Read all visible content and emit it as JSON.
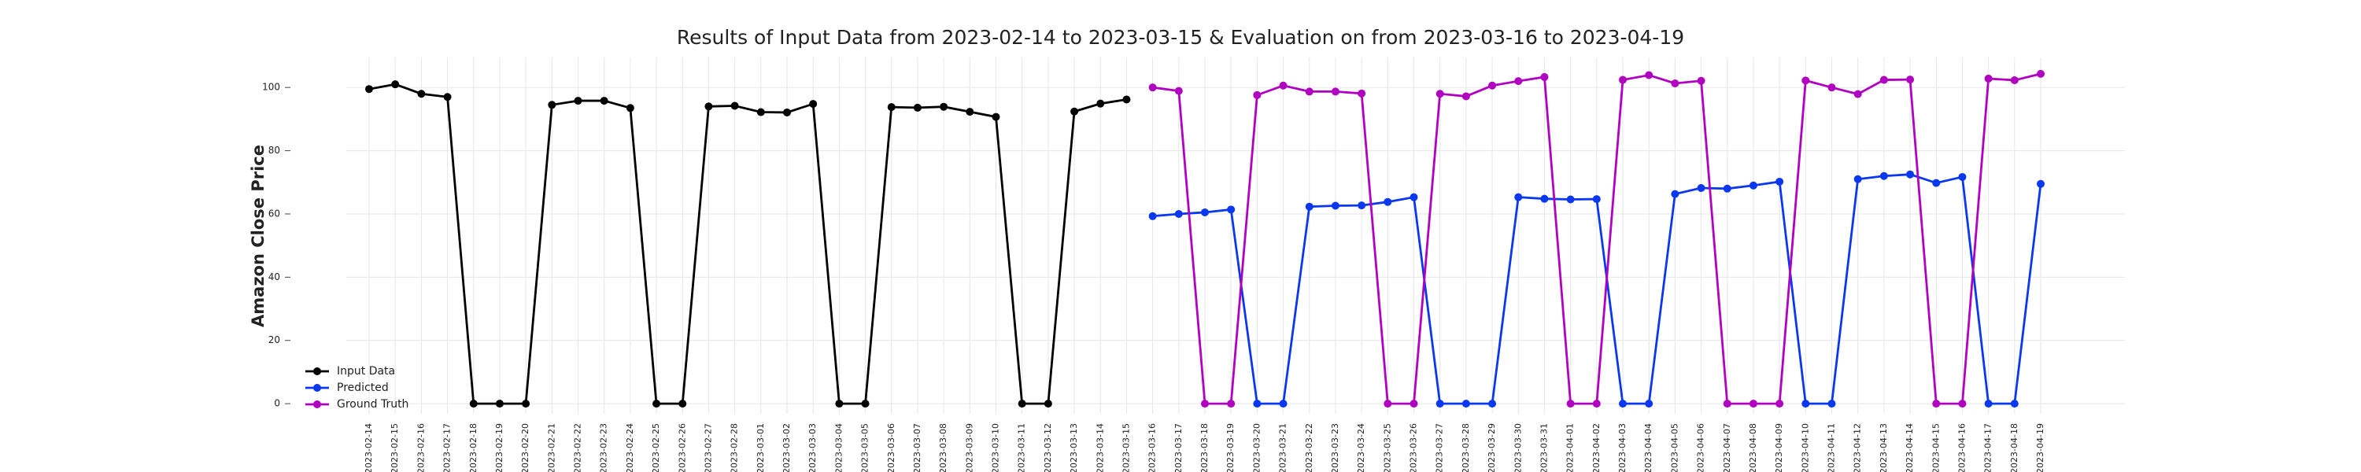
{
  "chart_data": {
    "type": "line",
    "title": "Results of Input Data from 2023-02-14 to 2023-03-15 & Evaluation on from 2023-03-16 to 2023-04-19",
    "y_label": "Amazon Close Price",
    "categories": [
      "2023-02-14",
      "2023-02-15",
      "2023-02-16",
      "2023-02-17",
      "2023-02-18",
      "2023-02-19",
      "2023-02-20",
      "2023-02-21",
      "2023-02-22",
      "2023-02-23",
      "2023-02-24",
      "2023-02-25",
      "2023-02-26",
      "2023-02-27",
      "2023-02-28",
      "2023-03-01",
      "2023-03-02",
      "2023-03-03",
      "2023-03-04",
      "2023-03-05",
      "2023-03-06",
      "2023-03-07",
      "2023-03-08",
      "2023-03-09",
      "2023-03-10",
      "2023-03-11",
      "2023-03-12",
      "2023-03-13",
      "2023-03-14",
      "2023-03-15",
      "2023-03-16",
      "2023-03-17",
      "2023-03-18",
      "2023-03-19",
      "2023-03-20",
      "2023-03-21",
      "2023-03-22",
      "2023-03-23",
      "2023-03-24",
      "2023-03-25",
      "2023-03-26",
      "2023-03-27",
      "2023-03-28",
      "2023-03-29",
      "2023-03-30",
      "2023-03-31",
      "2023-04-01",
      "2023-04-02",
      "2023-04-03",
      "2023-04-04",
      "2023-04-05",
      "2023-04-06",
      "2023-04-07",
      "2023-04-08",
      "2023-04-09",
      "2023-04-10",
      "2023-04-11",
      "2023-04-12",
      "2023-04-13",
      "2023-04-14",
      "2023-04-15",
      "2023-04-16",
      "2023-04-17",
      "2023-04-18",
      "2023-04-19"
    ],
    "series": [
      {
        "name": "Input Data",
        "color": "#000000",
        "values": [
          99.5,
          101,
          98,
          97,
          0,
          0,
          0,
          94.5,
          95.8,
          95.8,
          93.5,
          0,
          0,
          94,
          94.2,
          92.2,
          92.1,
          94.8,
          0,
          0,
          93.8,
          93.6,
          93.9,
          92.3,
          90.7,
          0,
          0,
          92.4,
          94.9,
          96.2,
          null,
          null,
          null,
          null,
          null,
          null,
          null,
          null,
          null,
          null,
          null,
          null,
          null,
          null,
          null,
          null,
          null,
          null,
          null,
          null,
          null,
          null,
          null,
          null,
          null,
          null,
          null,
          null,
          null,
          null,
          null,
          null,
          null,
          null,
          null
        ]
      },
      {
        "name": "Predicted",
        "color": "#0a37f0",
        "values": [
          null,
          null,
          null,
          null,
          null,
          null,
          null,
          null,
          null,
          null,
          null,
          null,
          null,
          null,
          null,
          null,
          null,
          null,
          null,
          null,
          null,
          null,
          null,
          null,
          null,
          null,
          null,
          null,
          null,
          null,
          59.3,
          60,
          60.5,
          61.4,
          0,
          0,
          62.3,
          62.6,
          62.7,
          63.8,
          65.3,
          0,
          0,
          0,
          65.3,
          64.8,
          64.6,
          64.7,
          0,
          0,
          66.3,
          68.2,
          68,
          69,
          70.2,
          0,
          0,
          71,
          72,
          72.5,
          69.8,
          71.7,
          0,
          0,
          69.5
        ]
      },
      {
        "name": "Ground Truth",
        "color": "#b000c0",
        "values": [
          null,
          null,
          null,
          null,
          null,
          null,
          null,
          null,
          null,
          null,
          null,
          null,
          null,
          null,
          null,
          null,
          null,
          null,
          null,
          null,
          null,
          null,
          null,
          null,
          null,
          null,
          null,
          null,
          null,
          null,
          100,
          98.9,
          0,
          0,
          97.6,
          100.6,
          98.7,
          98.7,
          98.1,
          0,
          0,
          98,
          97.2,
          100.6,
          102,
          103.3,
          0,
          0,
          102.4,
          103.9,
          101.3,
          102.1,
          0,
          0,
          0,
          102.2,
          100,
          97.9,
          102.4,
          102.5,
          0,
          0,
          102.8,
          102.3,
          104.3
        ]
      }
    ],
    "ylim": [
      -3.2,
      109.5
    ],
    "yticks": [
      0,
      20,
      40,
      60,
      80,
      100
    ],
    "grid": true,
    "legend": "lower left"
  }
}
